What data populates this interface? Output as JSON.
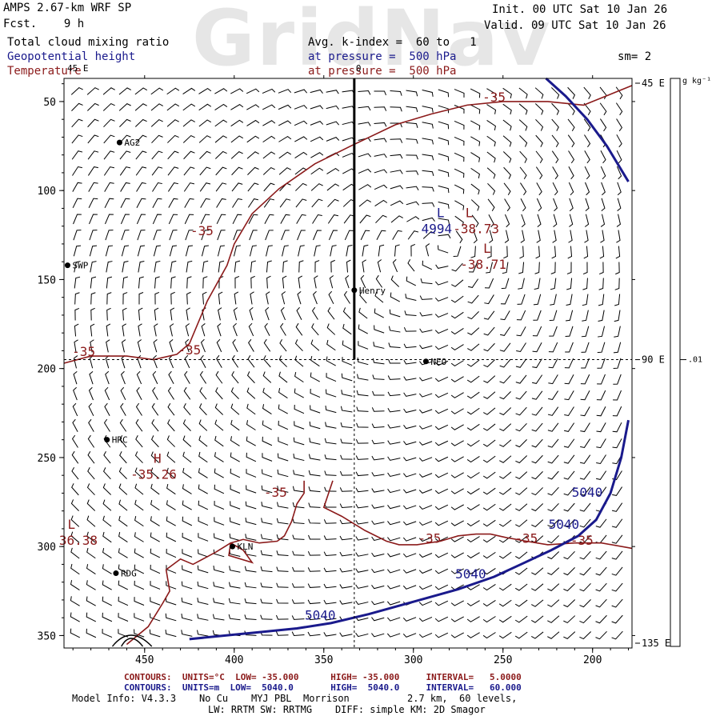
{
  "header": {
    "watermark": "GridNav",
    "model": "AMPS 2.67-km WRF SP",
    "fcst": "Fcst.    9 h",
    "init": "Init. 00 UTC Sat 10 Jan 26",
    "valid": "Valid. 09 UTC Sat 10 Jan 26",
    "field1": "Total cloud mixing ratio",
    "field2": "Geopotential height",
    "field3": "Temperature",
    "avg": "Avg. k-index =  60 to   1",
    "pres1": "at pressure =  500 hPa",
    "pres2": "at pressure =  500 hPa",
    "sm": "sm= 2"
  },
  "colors": {
    "height_contour": "#1a1a8c",
    "temperature_contour": "#8b1a1a",
    "barbs": "#000000"
  },
  "chart_data": {
    "type": "contour",
    "x_ticks": [
      450,
      400,
      350,
      300,
      250,
      200
    ],
    "y_ticks": [
      50,
      100,
      150,
      200,
      250,
      300,
      350
    ],
    "xlim": [
      495,
      178
    ],
    "ylim": [
      357,
      37
    ],
    "corner_labels": {
      "top_left": "45 E",
      "top_mid": "0"
    },
    "right_axis_labels": [
      "45 E",
      "90 E",
      "135 E"
    ],
    "colorbar": {
      "unit": "g kg⁻¹",
      "tick": ".01"
    },
    "crosshair": {
      "x": 333,
      "y": 195
    },
    "stations": [
      {
        "name": "AG2",
        "x": 464,
        "y": 73
      },
      {
        "name": "SWP",
        "x": 493,
        "y": 142
      },
      {
        "name": "Henry",
        "x": 333,
        "y": 156
      },
      {
        "name": "NEO",
        "x": 293,
        "y": 196
      },
      {
        "name": "HRC",
        "x": 471,
        "y": 240
      },
      {
        "name": "KLN",
        "x": 401,
        "y": 300
      },
      {
        "name": "RDG",
        "x": 466,
        "y": 315
      }
    ],
    "extrema": [
      {
        "kind": "L",
        "label": "L",
        "x": 287,
        "y": 115,
        "color": "navy"
      },
      {
        "kind": "L",
        "label": "L",
        "x": 271,
        "y": 115,
        "color": "red"
      },
      {
        "kind": "L",
        "label": "L",
        "x": 261,
        "y": 135,
        "color": "red"
      },
      {
        "kind": "H",
        "label": "H",
        "x": 445,
        "y": 253,
        "color": "red"
      },
      {
        "kind": "L",
        "label": "L",
        "x": 493,
        "y": 290,
        "color": "red"
      }
    ],
    "value_labels": [
      {
        "text": "4994",
        "x": 287,
        "y": 124,
        "color": "navy"
      },
      {
        "text": "-38.73",
        "x": 265,
        "y": 124,
        "color": "red"
      },
      {
        "text": "-38.71",
        "x": 261,
        "y": 144,
        "color": "red"
      },
      {
        "text": "-35.26",
        "x": 445,
        "y": 262,
        "color": "red"
      },
      {
        "text": "36.38",
        "x": 487,
        "y": 299,
        "color": "red"
      }
    ],
    "contour_labels": [
      {
        "text": "-35",
        "x": 255,
        "y": 50,
        "color": "red"
      },
      {
        "text": "-35",
        "x": 418,
        "y": 125,
        "color": "red"
      },
      {
        "text": "-35",
        "x": 484,
        "y": 193,
        "color": "red"
      },
      {
        "text": "-35",
        "x": 425,
        "y": 192,
        "color": "red"
      },
      {
        "text": "-35",
        "x": 377,
        "y": 272,
        "color": "red"
      },
      {
        "text": "-35",
        "x": 291,
        "y": 298,
        "color": "red"
      },
      {
        "text": "-35",
        "x": 237,
        "y": 298,
        "color": "red"
      },
      {
        "text": "-35",
        "x": 206,
        "y": 299,
        "color": "red"
      },
      {
        "text": "5040",
        "x": 203,
        "y": 272,
        "color": "navy"
      },
      {
        "text": "5040",
        "x": 216,
        "y": 290,
        "color": "navy"
      },
      {
        "text": "5040",
        "x": 268,
        "y": 318,
        "color": "navy"
      },
      {
        "text": "5040",
        "x": 352,
        "y": 341,
        "color": "navy"
      }
    ],
    "series": [
      {
        "name": "-35",
        "color": "red",
        "points": [
          [
            495,
            197
          ],
          [
            480,
            193
          ],
          [
            460,
            193
          ],
          [
            445,
            195
          ],
          [
            432,
            192
          ],
          [
            425,
            186
          ],
          [
            415,
            162
          ],
          [
            404,
            142
          ],
          [
            400,
            130
          ],
          [
            390,
            113
          ],
          [
            375,
            99
          ],
          [
            355,
            85
          ],
          [
            335,
            75
          ],
          [
            310,
            63
          ],
          [
            290,
            57
          ],
          [
            270,
            52
          ],
          [
            250,
            50
          ],
          [
            225,
            50
          ],
          [
            205,
            52
          ],
          [
            178,
            41
          ]
        ]
      },
      {
        "name": "-35",
        "color": "red",
        "points": [
          [
            345,
            263
          ],
          [
            350,
            278
          ],
          [
            340,
            283
          ],
          [
            327,
            291
          ],
          [
            315,
            297
          ],
          [
            308,
            299
          ],
          [
            298,
            299
          ],
          [
            285,
            297
          ],
          [
            275,
            294
          ],
          [
            265,
            293
          ],
          [
            257,
            293
          ],
          [
            248,
            295
          ],
          [
            237,
            297
          ],
          [
            225,
            299
          ],
          [
            210,
            298
          ],
          [
            195,
            298
          ],
          [
            178,
            301
          ]
        ]
      },
      {
        "name": "-35",
        "color": "red",
        "points": [
          [
            361,
            263
          ],
          [
            361,
            270
          ],
          [
            365,
            276
          ],
          [
            368,
            286
          ],
          [
            372,
            294
          ],
          [
            376,
            297
          ],
          [
            386,
            298
          ],
          [
            395,
            296
          ],
          [
            402,
            298
          ],
          [
            403,
            305
          ],
          [
            390,
            309
          ],
          [
            395,
            302
          ],
          [
            402,
            298
          ],
          [
            410,
            303
          ],
          [
            423,
            310
          ],
          [
            430,
            307
          ],
          [
            438,
            313
          ],
          [
            436,
            325
          ],
          [
            440,
            332
          ],
          [
            448,
            345
          ],
          [
            460,
            355
          ]
        ]
      },
      {
        "name": "5040",
        "color": "navy",
        "points": [
          [
            180,
            229
          ],
          [
            184,
            250
          ],
          [
            190,
            270
          ],
          [
            198,
            285
          ],
          [
            208,
            294
          ],
          [
            223,
            302
          ],
          [
            240,
            310
          ],
          [
            255,
            317
          ],
          [
            275,
            324
          ],
          [
            300,
            331
          ],
          [
            325,
            338
          ],
          [
            346,
            343
          ],
          [
            365,
            346
          ],
          [
            385,
            348
          ],
          [
            405,
            350
          ],
          [
            425,
            352
          ]
        ]
      },
      {
        "name": "5040",
        "color": "navy",
        "points": [
          [
            226,
            37
          ],
          [
            215,
            47
          ],
          [
            203,
            60
          ],
          [
            192,
            75
          ],
          [
            186,
            85
          ],
          [
            180,
            95
          ]
        ]
      }
    ]
  }
}
